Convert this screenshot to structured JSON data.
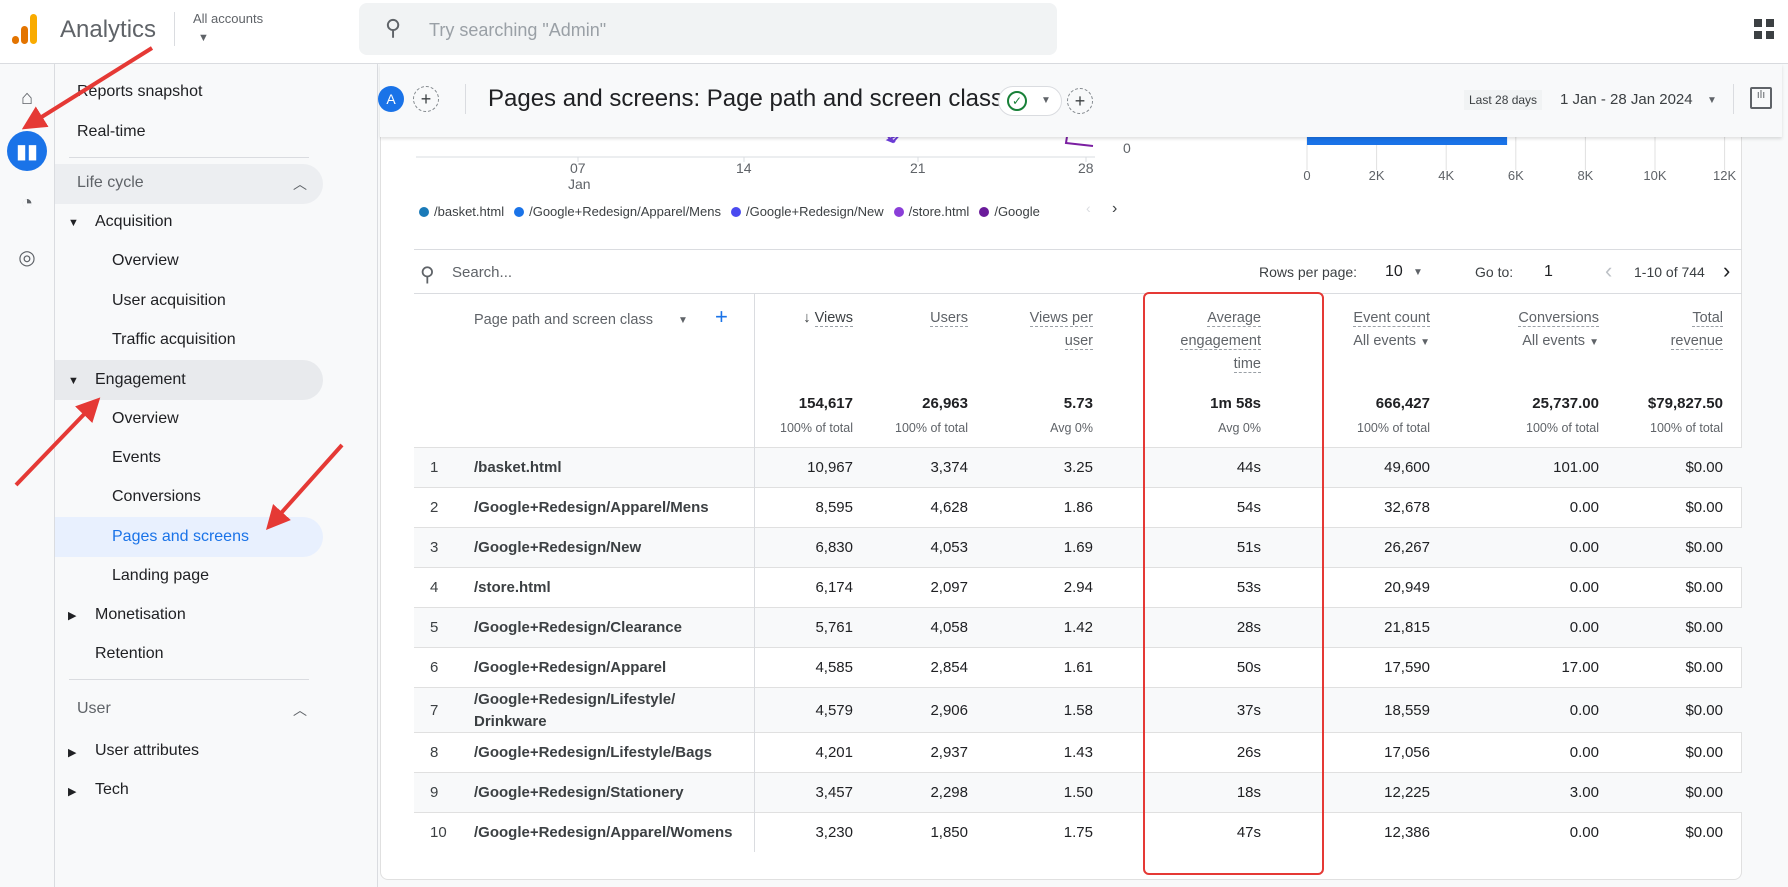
{
  "topbar": {
    "app_title": "Analytics",
    "account_label": "All accounts",
    "search_placeholder": "Try searching \"Admin\""
  },
  "colors": {
    "accent": "#1a73e8",
    "annotation": "#e53935",
    "logo": [
      "#f9ab00",
      "#e37400"
    ]
  },
  "nav": {
    "items": [
      {
        "label": "Reports snapshot"
      },
      {
        "label": "Real-time"
      }
    ],
    "lifecycle": {
      "label": "Life cycle",
      "acquisition": {
        "label": "Acquisition",
        "children": [
          "Overview",
          "User acquisition",
          "Traffic acquisition"
        ]
      },
      "engagement": {
        "label": "Engagement",
        "children": [
          "Overview",
          "Events",
          "Conversions",
          "Pages and screens",
          "Landing page"
        ]
      },
      "monetisation": "Monetisation",
      "retention": "Retention"
    },
    "user": {
      "label": "User",
      "attributes": "User attributes",
      "tech": "Tech"
    },
    "active": "Pages and screens"
  },
  "page": {
    "avatar": "A",
    "title": "Pages and screens: Page path and screen class",
    "range_badge": "Last 28 days",
    "date_range": "1 Jan - 28 Jan 2024"
  },
  "chart_fragment": {
    "line_x_ticks": [
      "07",
      "14",
      "21",
      "28"
    ],
    "line_x_month": "Jan",
    "line_y_tick": "0",
    "legend": [
      {
        "label": "/basket.html",
        "color": "#1a7ab8"
      },
      {
        "label": "/Google+Redesign/Apparel/Mens",
        "color": "#1a73e8"
      },
      {
        "label": "/Google+Redesign/New",
        "color": "#4a4af0"
      },
      {
        "label": "/store.html",
        "color": "#8a3ed8"
      },
      {
        "label": "/Google",
        "color": "#6a1b9a"
      }
    ],
    "bar_x_ticks": [
      "0",
      "2K",
      "4K",
      "6K",
      "8K",
      "10K",
      "12K"
    ],
    "bar_value": 5750,
    "bar_max": 12000
  },
  "table": {
    "search_placeholder": "Search...",
    "rows_per_page_label": "Rows per page:",
    "rows_per_page": "10",
    "goto_label": "Go to:",
    "goto": "1",
    "pagination": "1-10 of 744",
    "dimension_header": "Page path and screen class",
    "headers": {
      "views": "Views",
      "users": "Users",
      "vpu1": "Views per",
      "vpu2": "user",
      "aet1": "Average",
      "aet2": "engagement",
      "aet3": "time",
      "events": "Event count",
      "events_sub": "All events",
      "conv": "Conversions",
      "conv_sub": "All events",
      "rev1": "Total",
      "rev2": "revenue"
    },
    "totals": {
      "views": "154,617",
      "users": "26,963",
      "vpu": "5.73",
      "aet": "1m 58s",
      "events": "666,427",
      "conv": "25,737.00",
      "rev": "$79,827.50"
    },
    "totals_sub": {
      "views": "100% of total",
      "users": "100% of total",
      "vpu": "Avg 0%",
      "aet": "Avg 0%",
      "events": "100% of total",
      "conv": "100% of total",
      "rev": "100% of total"
    },
    "rows": [
      {
        "n": "1",
        "path": "/basket.html",
        "views": "10,967",
        "users": "3,374",
        "vpu": "3.25",
        "aet": "44s",
        "events": "49,600",
        "conv": "101.00",
        "rev": "$0.00"
      },
      {
        "n": "2",
        "path": "/Google+Redesign/Apparel/Mens",
        "views": "8,595",
        "users": "4,628",
        "vpu": "1.86",
        "aet": "54s",
        "events": "32,678",
        "conv": "0.00",
        "rev": "$0.00"
      },
      {
        "n": "3",
        "path": "/Google+Redesign/New",
        "views": "6,830",
        "users": "4,053",
        "vpu": "1.69",
        "aet": "51s",
        "events": "26,267",
        "conv": "0.00",
        "rev": "$0.00"
      },
      {
        "n": "4",
        "path": "/store.html",
        "views": "6,174",
        "users": "2,097",
        "vpu": "2.94",
        "aet": "53s",
        "events": "20,949",
        "conv": "0.00",
        "rev": "$0.00"
      },
      {
        "n": "5",
        "path": "/Google+Redesign/Clearance",
        "views": "5,761",
        "users": "4,058",
        "vpu": "1.42",
        "aet": "28s",
        "events": "21,815",
        "conv": "0.00",
        "rev": "$0.00"
      },
      {
        "n": "6",
        "path": "/Google+Redesign/Apparel",
        "views": "4,585",
        "users": "2,854",
        "vpu": "1.61",
        "aet": "50s",
        "events": "17,590",
        "conv": "17.00",
        "rev": "$0.00"
      },
      {
        "n": "7",
        "path": "/Google+Redesign/Lifestyle/ Drinkware",
        "views": "4,579",
        "users": "2,906",
        "vpu": "1.58",
        "aet": "37s",
        "events": "18,559",
        "conv": "0.00",
        "rev": "$0.00"
      },
      {
        "n": "8",
        "path": "/Google+Redesign/Lifestyle/Bags",
        "views": "4,201",
        "users": "2,937",
        "vpu": "1.43",
        "aet": "26s",
        "events": "17,056",
        "conv": "0.00",
        "rev": "$0.00"
      },
      {
        "n": "9",
        "path": "/Google+Redesign/Stationery",
        "views": "3,457",
        "users": "2,298",
        "vpu": "1.50",
        "aet": "18s",
        "events": "12,225",
        "conv": "3.00",
        "rev": "$0.00"
      },
      {
        "n": "10",
        "path": "/Google+Redesign/Apparel/Womens",
        "views": "3,230",
        "users": "1,850",
        "vpu": "1.75",
        "aet": "47s",
        "events": "12,386",
        "conv": "0.00",
        "rev": "$0.00"
      }
    ]
  }
}
